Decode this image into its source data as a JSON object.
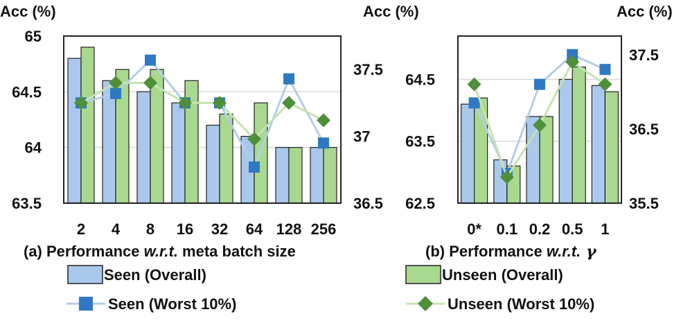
{
  "chart_data": [
    {
      "id": "a",
      "type": "bar",
      "caption": {
        "prefix": "(a) Performance ",
        "italic": "w.r.t.",
        "suffix": " meta batch size"
      },
      "categories": [
        "2",
        "4",
        "8",
        "16",
        "32",
        "64",
        "128",
        "256"
      ],
      "y_left": {
        "title": "Acc (%)",
        "range": [
          63.5,
          65
        ],
        "ticks": [
          "65",
          "64.5",
          "64",
          "63.5"
        ],
        "tick_values": [
          65,
          64.5,
          64,
          63.5
        ]
      },
      "y_right": {
        "title": "Acc (%)",
        "range": [
          36.5,
          37.75
        ],
        "ticks": [
          "37.5",
          "37",
          "36.5"
        ],
        "tick_values": [
          37.5,
          37,
          36.5
        ]
      },
      "grid": true,
      "series": [
        {
          "name": "Seen (Overall)",
          "kind": "bar",
          "axis": "left",
          "values": [
            64.8,
            64.6,
            64.5,
            64.4,
            64.2,
            64.1,
            64.0,
            64.0
          ]
        },
        {
          "name": "Unseen (Overall)",
          "kind": "bar",
          "axis": "left",
          "values": [
            64.9,
            64.7,
            64.7,
            64.6,
            64.3,
            64.4,
            64.0,
            64.0
          ]
        },
        {
          "name": "Seen (Worst 10%)",
          "kind": "line",
          "axis": "right",
          "values": [
            37.25,
            37.32,
            37.57,
            37.25,
            37.25,
            36.77,
            37.43,
            36.95
          ]
        },
        {
          "name": "Unseen (Worst 10%)",
          "kind": "line",
          "axis": "right",
          "values": [
            37.25,
            37.4,
            37.4,
            37.25,
            37.25,
            36.98,
            37.25,
            37.12
          ]
        }
      ]
    },
    {
      "id": "b",
      "type": "bar",
      "caption": {
        "prefix": "(b) Performance ",
        "italic": "w.r.t.",
        "suffix": "",
        "symbol": "γ"
      },
      "categories": [
        "0*",
        "0.1",
        "0.2",
        "0.5",
        "1"
      ],
      "y_left": {
        "title": "",
        "range": [
          62.5,
          65.2
        ],
        "ticks": [
          "64.5",
          "63.5",
          "62.5"
        ],
        "tick_values": [
          64.5,
          63.5,
          62.5
        ]
      },
      "y_right": {
        "title": "Acc (%)",
        "range": [
          35.5,
          37.75
        ],
        "ticks": [
          "37.5",
          "36.5",
          "35.5"
        ],
        "tick_values": [
          37.5,
          36.5,
          35.5
        ]
      },
      "grid": true,
      "series": [
        {
          "name": "Seen (Overall)",
          "kind": "bar",
          "axis": "left",
          "values": [
            64.1,
            63.2,
            63.9,
            64.5,
            64.4
          ]
        },
        {
          "name": "Unseen (Overall)",
          "kind": "bar",
          "axis": "left",
          "values": [
            64.2,
            63.1,
            63.9,
            64.7,
            64.3
          ]
        },
        {
          "name": "Seen (Worst 10%)",
          "kind": "line",
          "axis": "right",
          "values": [
            36.85,
            35.9,
            37.1,
            37.5,
            37.3
          ]
        },
        {
          "name": "Unseen (Worst 10%)",
          "kind": "line",
          "axis": "right",
          "values": [
            37.1,
            35.85,
            36.55,
            37.4,
            37.1
          ]
        }
      ]
    }
  ],
  "colors": {
    "seen_bar": "#a9c8ec",
    "unseen_bar": "#a9d88f",
    "seen_line": "#b3cde8",
    "unseen_line": "#c5e3b3",
    "seen_marker": "#2f79c4",
    "unseen_marker": "#4e8f3a",
    "grid": "#d9d9d9",
    "frame": "#222222"
  },
  "legend": {
    "seen_overall": "Seen (Overall)",
    "unseen_overall": "Unseen (Overall)",
    "seen_worst": "Seen (Worst 10%)",
    "unseen_worst": "Unseen (Worst 10%)"
  }
}
